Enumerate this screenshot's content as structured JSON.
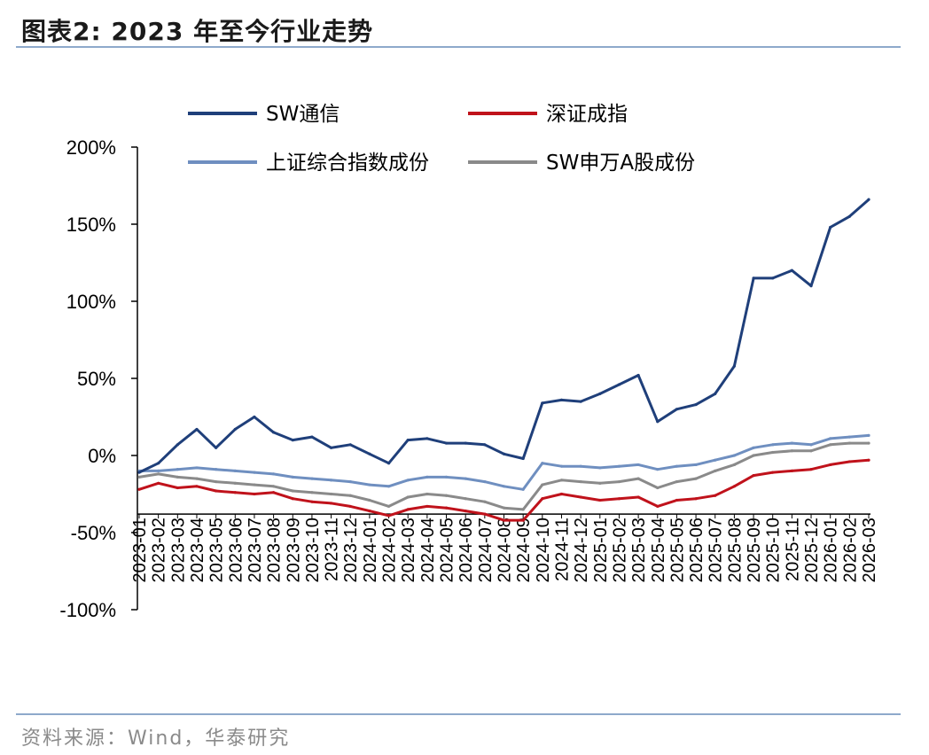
{
  "header": {
    "title": "图表2:   2023 年至今行业走势"
  },
  "footer": {
    "source": "资料来源：Wind，华泰研究"
  },
  "colors": {
    "sw_telecom": "#1f3f7a",
    "szse_component": "#c0121b",
    "sse_composite": "#6f8fc0",
    "sw_a_share": "#8a8a8a",
    "rule": "#8ea9cb"
  },
  "chart_data": {
    "type": "line",
    "title": "2023 年至今行业走势",
    "xlabel": "",
    "ylabel": "",
    "ylim": [
      -100,
      200
    ],
    "yticks": [
      -100,
      -50,
      0,
      50,
      100,
      150,
      200
    ],
    "ytick_labels": [
      "-100%",
      "-50%",
      "0%",
      "50%",
      "100%",
      "150%",
      "200%"
    ],
    "x_axis_crosses_at": -38,
    "legend_position": "top",
    "grid": false,
    "x": [
      "2023-01",
      "2023-02",
      "2023-03",
      "2023-04",
      "2023-05",
      "2023-06",
      "2023-07",
      "2023-08",
      "2023-09",
      "2023-10",
      "2023-11",
      "2023-12",
      "2024-01",
      "2024-02",
      "2024-03",
      "2024-04",
      "2024-05",
      "2024-06",
      "2024-07",
      "2024-08",
      "2024-09",
      "2024-10",
      "2024-11",
      "2024-12",
      "2025-01",
      "2025-02",
      "2025-03",
      "2025-04",
      "2025-05",
      "2025-06",
      "2025-07",
      "2025-08",
      "2025-09",
      "2025-10",
      "2025-11",
      "2025-12",
      "2026-01",
      "2026-02",
      "2026-03"
    ],
    "series": [
      {
        "name": "SW通信",
        "color_key": "sw_telecom",
        "values": [
          -11,
          -5,
          7,
          17,
          5,
          17,
          25,
          15,
          10,
          12,
          5,
          7,
          1,
          -5,
          10,
          11,
          8,
          8,
          7,
          1,
          -2,
          34,
          36,
          35,
          40,
          46,
          52,
          22,
          30,
          33,
          40,
          58,
          115,
          115,
          120,
          110,
          148,
          155,
          166
        ]
      },
      {
        "name": "深证成指",
        "color_key": "szse_component",
        "values": [
          -22,
          -18,
          -21,
          -20,
          -23,
          -24,
          -25,
          -24,
          -28,
          -30,
          -31,
          -33,
          -36,
          -39,
          -35,
          -33,
          -34,
          -36,
          -38,
          -42,
          -42,
          -28,
          -25,
          -27,
          -29,
          -28,
          -27,
          -33,
          -29,
          -28,
          -26,
          -20,
          -13,
          -11,
          -10,
          -9,
          -6,
          -4,
          -3
        ]
      },
      {
        "name": "上证综合指数成份",
        "color_key": "sse_composite",
        "values": [
          -10,
          -10,
          -9,
          -8,
          -9,
          -10,
          -11,
          -12,
          -14,
          -15,
          -16,
          -17,
          -19,
          -20,
          -16,
          -14,
          -14,
          -15,
          -17,
          -20,
          -22,
          -5,
          -7,
          -7,
          -8,
          -7,
          -6,
          -9,
          -7,
          -6,
          -3,
          0,
          5,
          7,
          8,
          7,
          11,
          12,
          13
        ]
      },
      {
        "name": "SW申万A股成份",
        "color_key": "sw_a_share",
        "values": [
          -14,
          -12,
          -14,
          -15,
          -17,
          -18,
          -19,
          -20,
          -23,
          -24,
          -25,
          -26,
          -29,
          -33,
          -27,
          -25,
          -26,
          -28,
          -30,
          -34,
          -35,
          -19,
          -16,
          -17,
          -18,
          -17,
          -15,
          -21,
          -17,
          -15,
          -10,
          -6,
          0,
          2,
          3,
          3,
          7,
          8,
          8
        ]
      }
    ]
  }
}
